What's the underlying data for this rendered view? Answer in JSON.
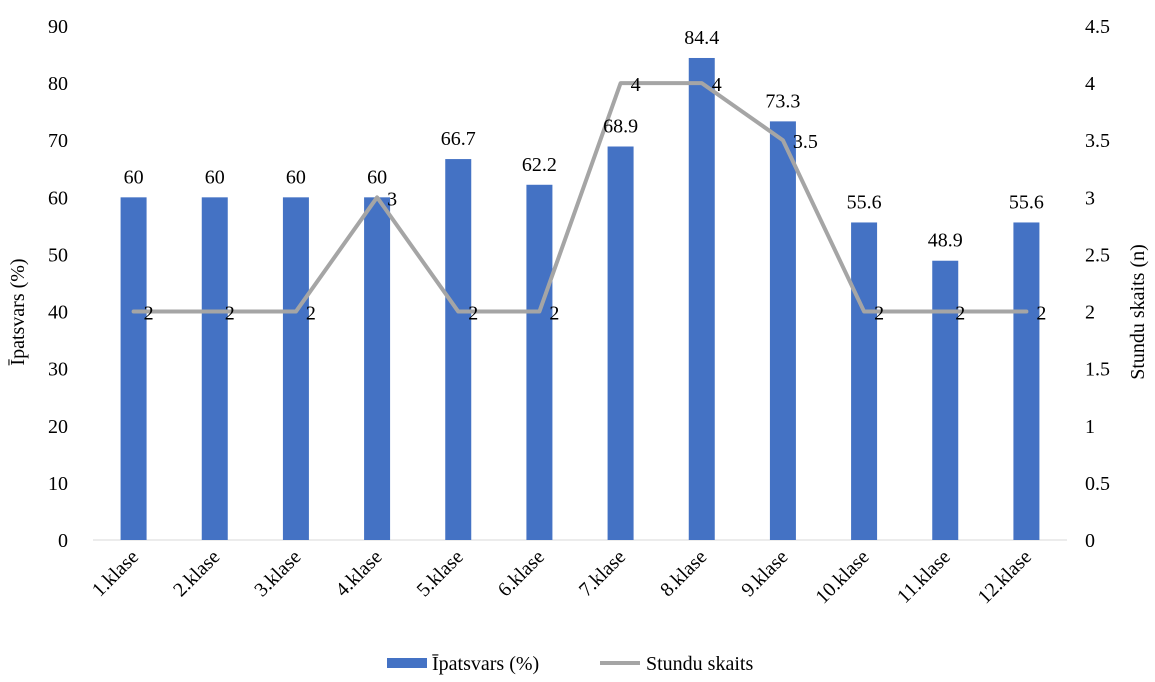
{
  "chart_data": {
    "type": "bar",
    "categories": [
      "1.klase",
      "2.klase",
      "3.klase",
      "4.klase",
      "5.klase",
      "6.klase",
      "7.klase",
      "8.klase",
      "9.klase",
      "10.klase",
      "11.klase",
      "12.klase"
    ],
    "series": [
      {
        "name": "Īpatsvars (%)",
        "type": "bar",
        "axis": "left",
        "color": "#4472C4",
        "values": [
          60,
          60,
          60,
          60,
          66.7,
          62.2,
          68.9,
          84.4,
          73.3,
          55.6,
          48.9,
          55.6
        ]
      },
      {
        "name": "Stundu skaits",
        "type": "line",
        "axis": "right",
        "color": "#A5A5A5",
        "values": [
          2,
          2,
          2,
          3,
          2,
          2,
          4,
          4,
          3.5,
          2,
          2,
          2
        ]
      }
    ],
    "ylabel": "Īpatsvars (%)",
    "y2label": "Stundu skaits (n)",
    "ylim": [
      0,
      90
    ],
    "y2lim": [
      0,
      4.5
    ],
    "yticks": [
      "0",
      "10",
      "20",
      "30",
      "40",
      "50",
      "60",
      "70",
      "80",
      "90"
    ],
    "y2ticks": [
      "0",
      "0.5",
      "1",
      "1.5",
      "2",
      "2.5",
      "3",
      "3.5",
      "4",
      "4.5"
    ],
    "bar_labels": [
      "60",
      "60",
      "60",
      "60",
      "66.7",
      "62.2",
      "68.9",
      "84.4",
      "73.3",
      "55.6",
      "48.9",
      "55.6"
    ],
    "line_labels": [
      "2",
      "2",
      "2",
      "3",
      "2",
      "2",
      "4",
      "4",
      "3.5",
      "2",
      "2",
      "2"
    ],
    "grid": false,
    "legend_position": "bottom"
  }
}
